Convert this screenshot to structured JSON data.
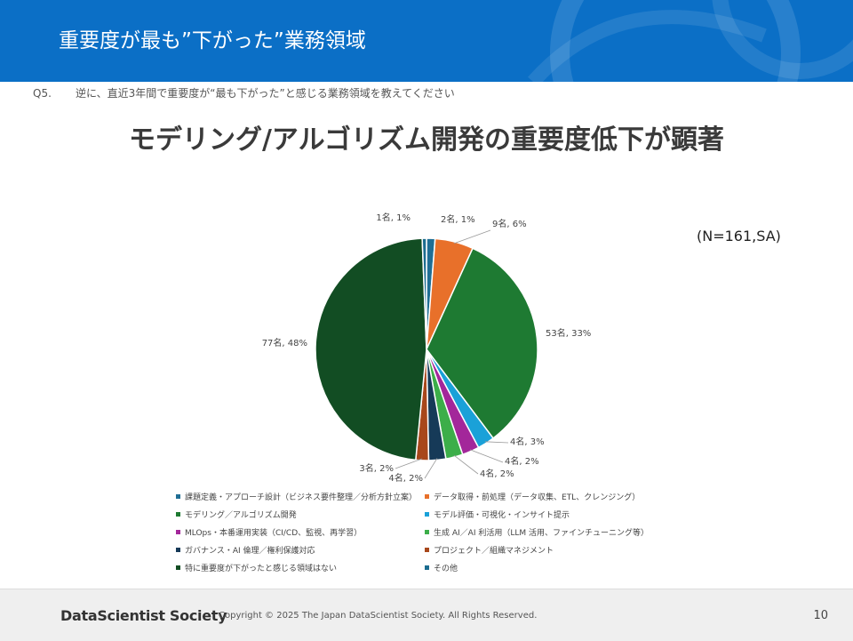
{
  "header": {
    "title": "重要度が最も”下がった”業務領域"
  },
  "question": {
    "number": "Q5.",
    "text": "逆に、直近3年間で重要度が“最も下がった”と感じる業務領域を教えてください"
  },
  "headline": "モデリング/アルゴリズム開発の重要度低下が顕著",
  "sample_note": "(N=161,SA)",
  "chart_data": {
    "type": "pie",
    "series": [
      {
        "category": "課題定義・アプローチ設計（ビジネス要件整理／分析方針立案）",
        "value": 2,
        "percent": 1,
        "label": "2名, 1%",
        "color": "#1f6e94"
      },
      {
        "category": "データ取得・前処理（データ収集、ETL、クレンジング）",
        "value": 9,
        "percent": 6,
        "label": "9名, 6%",
        "color": "#e8702a"
      },
      {
        "category": "モデリング／アルゴリズム開発",
        "value": 53,
        "percent": 33,
        "label": "53名, 33%",
        "color": "#1e7a32"
      },
      {
        "category": "モデル評価・可視化・インサイト提示",
        "value": 4,
        "percent": 3,
        "label": "4名, 3%",
        "color": "#1aa1d8"
      },
      {
        "category": "MLOps・本番運用実装（CI/CD、監視、再学習）",
        "value": 4,
        "percent": 2,
        "label": "4名, 2%",
        "color": "#a3279a"
      },
      {
        "category": "生成 AI／AI 利活用（LLM 活用、ファインチューニング等）",
        "value": 4,
        "percent": 2,
        "label": "4名, 2%",
        "color": "#3cae49"
      },
      {
        "category": "ガバナンス・AI 倫理／権利保護対応",
        "value": 4,
        "percent": 2,
        "label": "4名, 2%",
        "color": "#163a58"
      },
      {
        "category": "プロジェクト／組織マネジメント",
        "value": 3,
        "percent": 2,
        "label": "3名, 2%",
        "color": "#a8471b"
      },
      {
        "category": "特に重要度が下がったと感じる領域はない",
        "value": 77,
        "percent": 48,
        "label": "77名, 48%",
        "color": "#124d23"
      },
      {
        "category": "その他",
        "value": 1,
        "percent": 1,
        "label": "1名, 1%",
        "color": "#1b6c8f"
      }
    ]
  },
  "footer": {
    "logo": "DataScientist Society",
    "copyright": "Copyright © 2025  The Japan DataScientist Society. All Rights Reserved.",
    "page": "10"
  },
  "colors": {
    "banner": "#0b6fc6",
    "footer_bg": "#efefef"
  }
}
